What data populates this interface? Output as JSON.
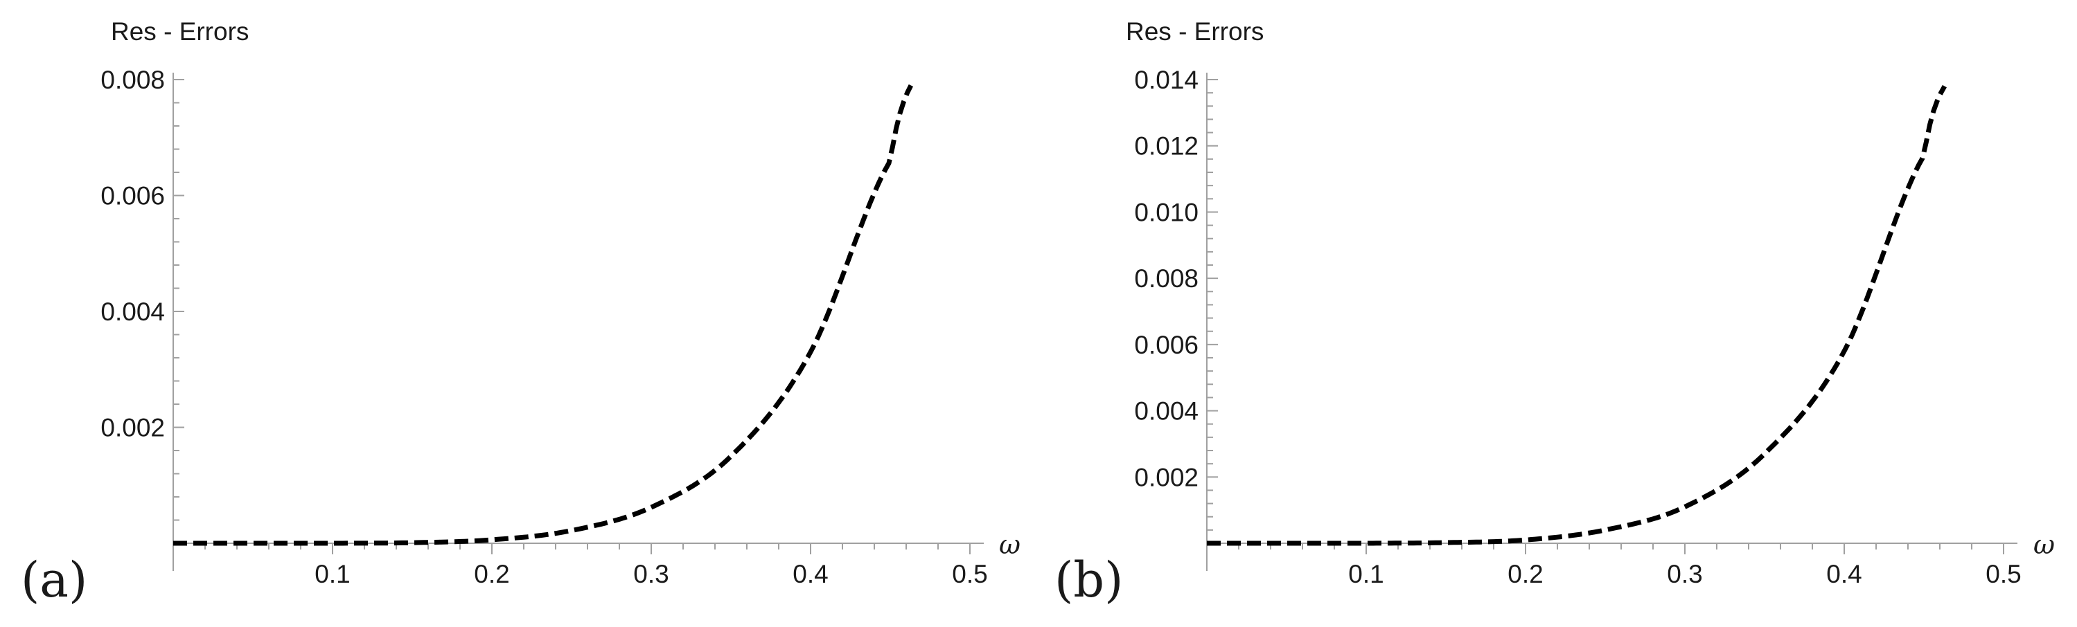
{
  "chart_data": [
    {
      "type": "line",
      "panel_label": "(a)",
      "ylabel": "Res - Errors",
      "xlabel": "ω",
      "xlim": [
        0,
        0.5
      ],
      "ylim": [
        0,
        0.008
      ],
      "x_ticks": [
        "0.1",
        "0.2",
        "0.3",
        "0.4",
        "0.5"
      ],
      "y_ticks": [
        "0.002",
        "0.004",
        "0.006",
        "0.008"
      ],
      "line_style": "dashed",
      "line_color": "#000000",
      "series": [
        {
          "x": [
            0.0,
            0.05,
            0.1,
            0.15,
            0.2,
            0.25,
            0.3,
            0.35,
            0.4,
            0.45,
            0.463
          ],
          "values": [
            0.0,
            0.0,
            0.0,
            1e-05,
            6e-05,
            0.00022,
            0.00062,
            0.0015,
            0.0033,
            0.0066,
            0.0079
          ]
        }
      ]
    },
    {
      "type": "line",
      "panel_label": "(b)",
      "ylabel": "Res - Errors",
      "xlabel": "ω",
      "xlim": [
        0,
        0.5
      ],
      "ylim": [
        0,
        0.014
      ],
      "x_ticks": [
        "0.1",
        "0.2",
        "0.3",
        "0.4",
        "0.5"
      ],
      "y_ticks": [
        "0.002",
        "0.004",
        "0.006",
        "0.008",
        "0.010",
        "0.012",
        "0.014"
      ],
      "line_style": "dashed",
      "line_color": "#000000",
      "series": [
        {
          "x": [
            0.0,
            0.05,
            0.1,
            0.15,
            0.2,
            0.25,
            0.3,
            0.35,
            0.4,
            0.45,
            0.463
          ],
          "values": [
            0.0,
            0.0,
            0.0,
            2e-05,
            0.0001,
            0.0004,
            0.0011,
            0.0027,
            0.0058,
            0.0117,
            0.0138
          ]
        }
      ]
    }
  ]
}
